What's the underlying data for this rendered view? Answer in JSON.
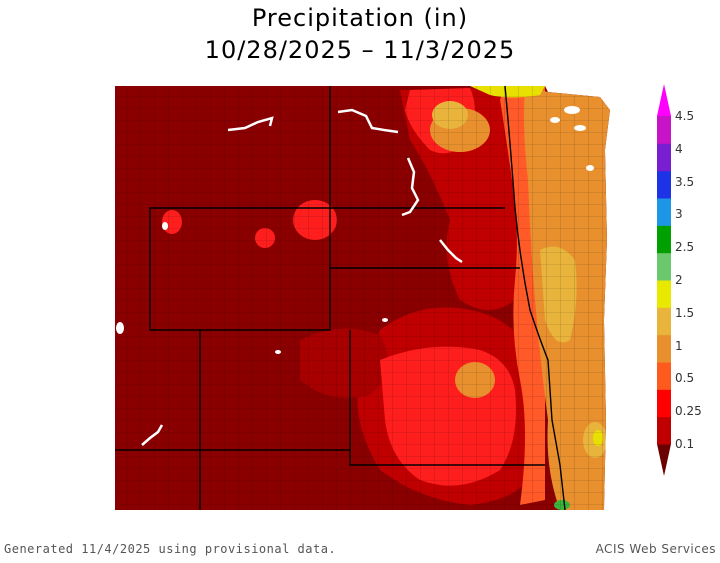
{
  "title": {
    "line1": "Precipitation (in)",
    "line2": "10/28/2025 – 11/3/2025"
  },
  "legend": {
    "labels": [
      "4.5",
      "4",
      "3.5",
      "3",
      "2.5",
      "2",
      "1.5",
      "1",
      "0.5",
      "0.25",
      "0.1"
    ],
    "colors": [
      "#6a0000",
      "#c00000",
      "#ff0000",
      "#ff5a1e",
      "#e8902e",
      "#e8b43c",
      "#e8e800",
      "#6cc86c",
      "#00a000",
      "#1e96e8",
      "#1e32e8",
      "#7a1ed2",
      "#c814c8",
      "#ff00ff"
    ]
  },
  "colors": {
    "dark_red": "#8a0000",
    "red": "#c80000",
    "bright_red": "#ff1e1e",
    "orange_red": "#ff5a28",
    "orange": "#e8902e",
    "light_orange": "#e8b43c",
    "yellow": "#e8e000",
    "green": "#3cb43c"
  },
  "footer": {
    "left": "Generated 11/4/2025 using provisional data.",
    "right": "ACIS Web Services"
  }
}
